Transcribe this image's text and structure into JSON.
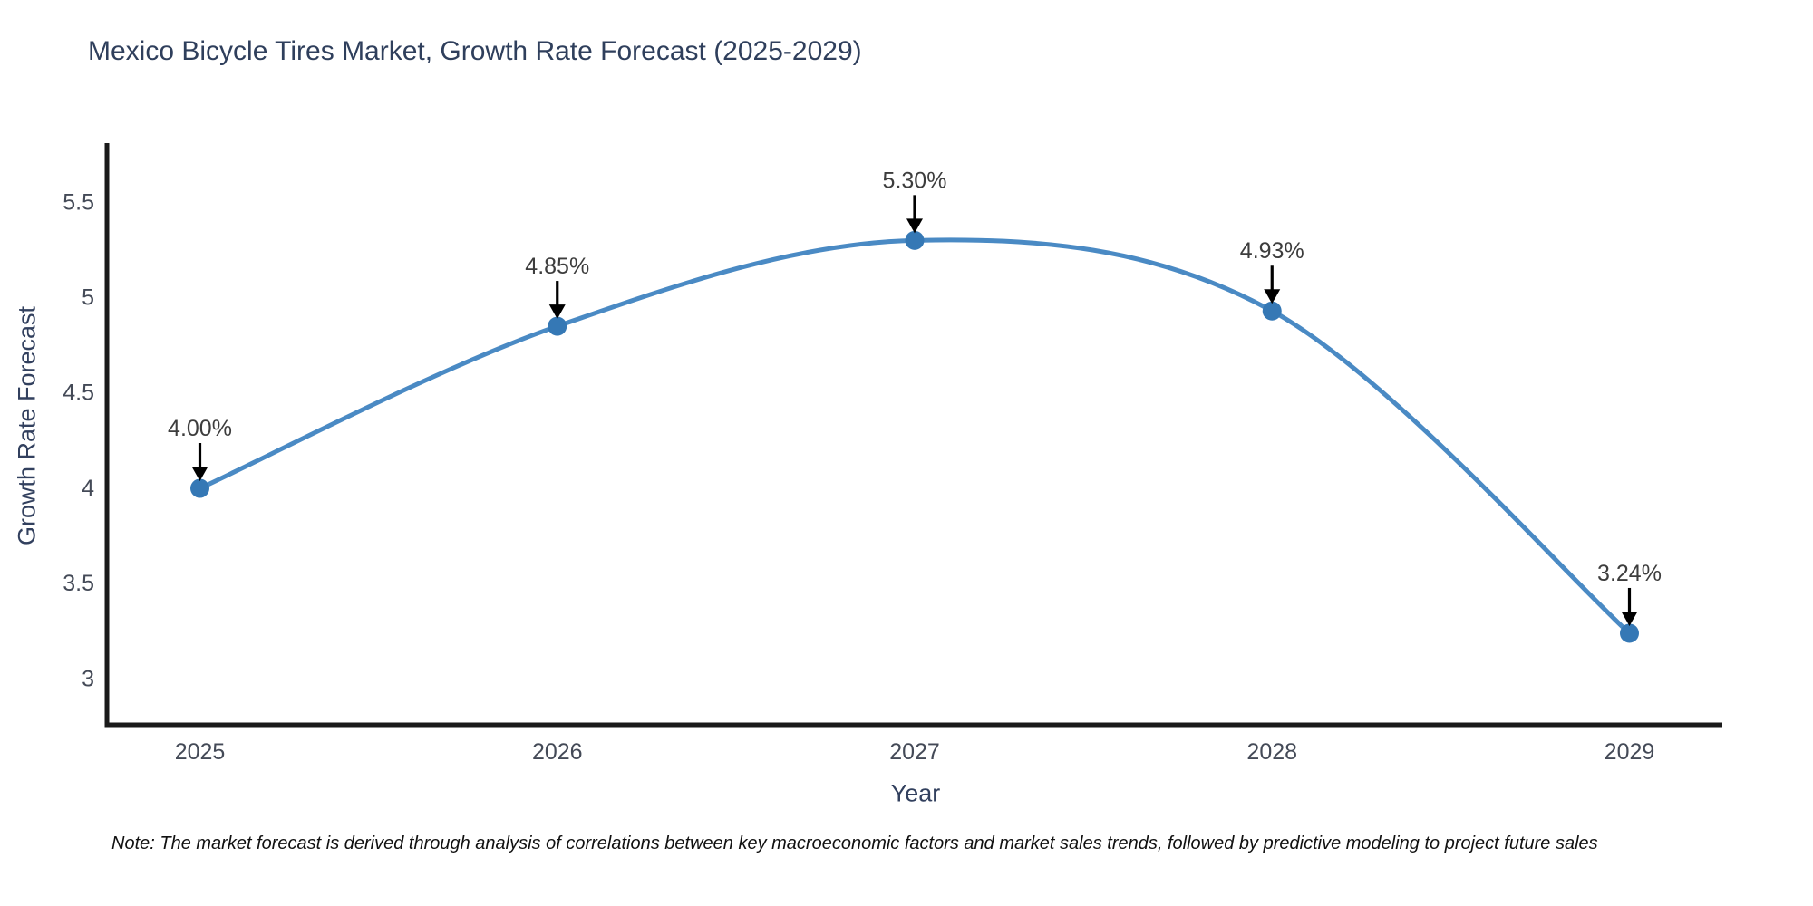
{
  "chart_data": {
    "type": "line",
    "title": "Mexico Bicycle Tires Market, Growth Rate Forecast (2025-2029)",
    "xlabel": "Year",
    "ylabel": "Growth Rate Forecast",
    "x": [
      2025,
      2026,
      2027,
      2028,
      2029
    ],
    "values": [
      4.0,
      4.85,
      5.3,
      4.93,
      3.24
    ],
    "point_labels": [
      "4.00%",
      "4.85%",
      "5.30%",
      "4.93%",
      "3.24%"
    ],
    "x_tick_labels": [
      "2025",
      "2026",
      "2027",
      "2028",
      "2029"
    ],
    "y_ticks": [
      3,
      3.5,
      4,
      4.5,
      5,
      5.5
    ],
    "y_tick_labels": [
      "3",
      "3.5",
      "4",
      "4.5",
      "5",
      "5.5"
    ],
    "xlim": [
      2024.74,
      2029.26
    ],
    "ylim": [
      2.76,
      5.81
    ],
    "grid": false,
    "legend": null,
    "note": "Note: The market forecast is derived through analysis of correlations between key macroeconomic factors and market sales trends, followed by predictive modeling to project future sales",
    "colors": {
      "line": "#4a8ac4",
      "marker": "#3578b5",
      "axis": "#1a1a1a",
      "title": "#2f3f5c",
      "axis_label": "#32405e",
      "tick_label": "#444a57",
      "annotation": "#3d3d3d",
      "annotation_arrow": "#000000",
      "note_text": "#111111",
      "background": "#ffffff"
    }
  }
}
